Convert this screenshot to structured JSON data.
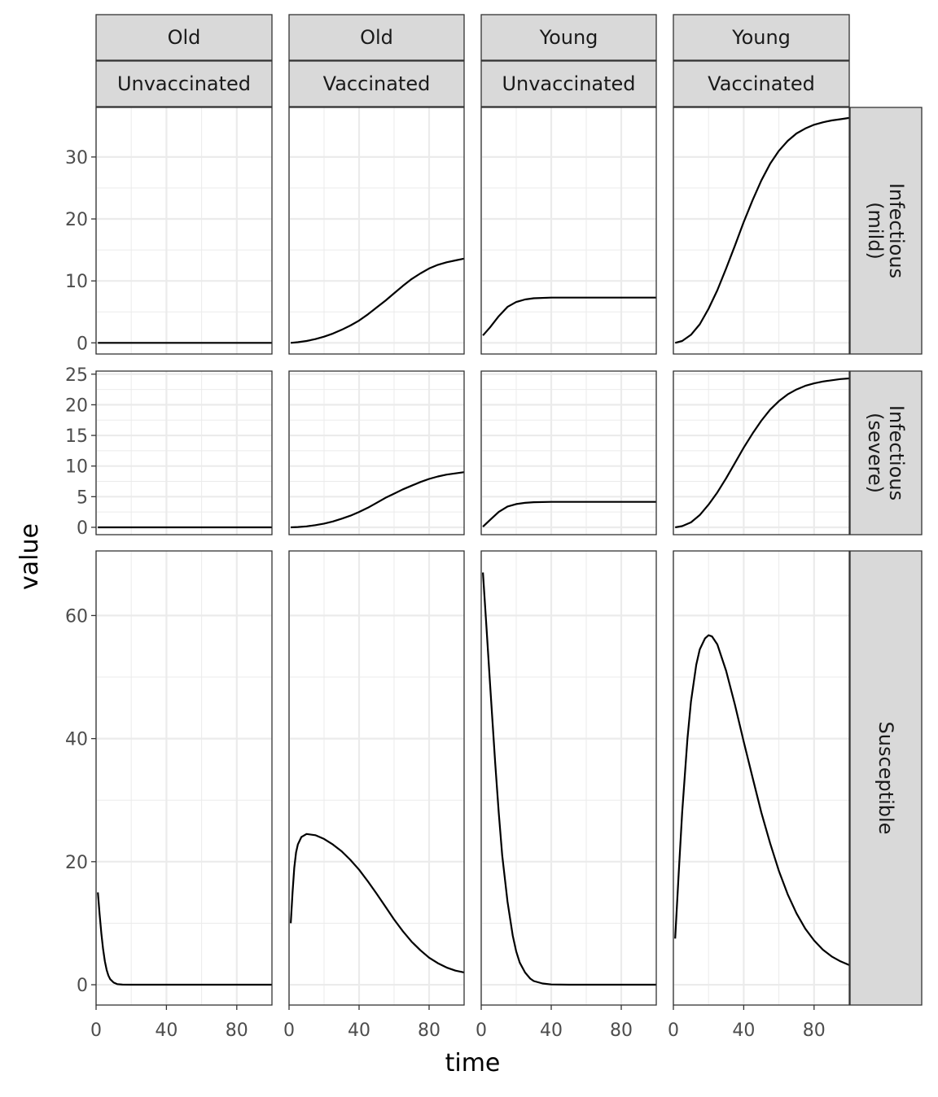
{
  "chart_data": {
    "type": "line",
    "xlabel": "time",
    "ylabel": "value",
    "xlim": [
      0,
      100
    ],
    "x_ticks": [
      0,
      40,
      80
    ],
    "grid": true,
    "line_color": "#000000",
    "strip_fill": "#d9d9d9",
    "grid_color": "#ebebeb",
    "panel_border_color": "#333333",
    "column_strips": [
      {
        "top": "Old",
        "bottom": "Unvaccinated"
      },
      {
        "top": "Old",
        "bottom": "Vaccinated"
      },
      {
        "top": "Young",
        "bottom": "Unvaccinated"
      },
      {
        "top": "Young",
        "bottom": "Vaccinated"
      }
    ],
    "rows": [
      {
        "strip": [
          "Infectious",
          "(mild)"
        ],
        "ylim": [
          -1.8,
          38
        ],
        "y_ticks": [
          0,
          10,
          20,
          30
        ],
        "y_tick_labels": [
          "0",
          "10",
          "20",
          "30"
        ],
        "series": [
          {
            "x": [
              1,
              10,
              20,
              30,
              40,
              50,
              60,
              70,
              80,
              90,
              100
            ],
            "y": [
              0,
              0,
              0,
              0,
              0,
              0,
              0,
              0,
              0,
              0,
              0
            ]
          },
          {
            "x": [
              1,
              5,
              10,
              15,
              20,
              25,
              30,
              35,
              40,
              45,
              50,
              55,
              60,
              65,
              70,
              75,
              80,
              85,
              90,
              95,
              100
            ],
            "y": [
              0,
              0.1,
              0.3,
              0.6,
              1.0,
              1.5,
              2.1,
              2.8,
              3.6,
              4.6,
              5.7,
              6.8,
              8.0,
              9.2,
              10.3,
              11.2,
              12.0,
              12.6,
              13.0,
              13.3,
              13.6
            ]
          },
          {
            "x": [
              1,
              5,
              10,
              15,
              20,
              25,
              30,
              40,
              50,
              60,
              70,
              80,
              90,
              100
            ],
            "y": [
              1.2,
              2.5,
              4.3,
              5.8,
              6.6,
              7.0,
              7.2,
              7.3,
              7.3,
              7.3,
              7.3,
              7.3,
              7.3,
              7.3
            ]
          },
          {
            "x": [
              1,
              5,
              10,
              15,
              20,
              25,
              30,
              35,
              40,
              45,
              50,
              55,
              60,
              65,
              70,
              75,
              80,
              85,
              90,
              95,
              100
            ],
            "y": [
              0,
              0.3,
              1.3,
              3.0,
              5.5,
              8.5,
              12.0,
              15.7,
              19.5,
              23.0,
              26.2,
              28.9,
              31.0,
              32.6,
              33.8,
              34.6,
              35.2,
              35.6,
              35.9,
              36.1,
              36.3
            ]
          }
        ]
      },
      {
        "strip": [
          "Infectious",
          "(severe)"
        ],
        "ylim": [
          -1.2,
          25.5
        ],
        "y_ticks": [
          0,
          5,
          10,
          15,
          20,
          25
        ],
        "y_tick_labels": [
          "0",
          "5",
          "10",
          "15",
          "20",
          "25"
        ],
        "series": [
          {
            "x": [
              1,
              10,
              20,
              30,
              40,
              50,
              60,
              70,
              80,
              90,
              100
            ],
            "y": [
              0,
              0,
              0,
              0,
              0,
              0,
              0,
              0,
              0,
              0,
              0
            ]
          },
          {
            "x": [
              1,
              5,
              10,
              15,
              20,
              25,
              30,
              35,
              40,
              45,
              50,
              55,
              60,
              65,
              70,
              75,
              80,
              85,
              90,
              95,
              100
            ],
            "y": [
              0,
              0.05,
              0.15,
              0.35,
              0.6,
              0.95,
              1.4,
              1.9,
              2.5,
              3.2,
              4.0,
              4.8,
              5.5,
              6.2,
              6.8,
              7.4,
              7.9,
              8.3,
              8.6,
              8.8,
              9.0
            ]
          },
          {
            "x": [
              1,
              5,
              10,
              15,
              20,
              25,
              30,
              40,
              50,
              60,
              70,
              80,
              90,
              100
            ],
            "y": [
              0.1,
              1.2,
              2.5,
              3.4,
              3.8,
              4.0,
              4.1,
              4.15,
              4.15,
              4.15,
              4.15,
              4.15,
              4.15,
              4.15
            ]
          },
          {
            "x": [
              1,
              5,
              10,
              15,
              20,
              25,
              30,
              35,
              40,
              45,
              50,
              55,
              60,
              65,
              70,
              75,
              80,
              85,
              90,
              95,
              100
            ],
            "y": [
              0,
              0.2,
              0.8,
              2.0,
              3.7,
              5.7,
              8.0,
              10.5,
              13.0,
              15.3,
              17.4,
              19.2,
              20.6,
              21.7,
              22.5,
              23.1,
              23.5,
              23.8,
              24.0,
              24.2,
              24.3
            ]
          }
        ]
      },
      {
        "strip": [
          "Susceptible"
        ],
        "ylim": [
          -3.3,
          70.5
        ],
        "y_ticks": [
          0,
          20,
          40,
          60
        ],
        "y_tick_labels": [
          "0",
          "20",
          "40",
          "60"
        ],
        "series": [
          {
            "x": [
              1,
              2,
              3,
              4,
              5,
              6,
              7,
              8,
              10,
              12,
              15,
              20,
              40,
              60,
              80,
              100
            ],
            "y": [
              15,
              11.5,
              8.3,
              5.8,
              3.8,
              2.4,
              1.5,
              0.9,
              0.35,
              0.1,
              0.02,
              0,
              0,
              0,
              0,
              0
            ]
          },
          {
            "x": [
              1,
              2,
              3,
              4,
              5,
              7,
              10,
              15,
              20,
              25,
              30,
              35,
              40,
              45,
              50,
              55,
              60,
              65,
              70,
              75,
              80,
              85,
              90,
              95,
              100
            ],
            "y": [
              10,
              15,
              19,
              21.5,
              22.8,
              24.0,
              24.5,
              24.3,
              23.7,
              22.8,
              21.7,
              20.3,
              18.7,
              16.8,
              14.8,
              12.7,
              10.6,
              8.7,
              7.0,
              5.6,
              4.4,
              3.5,
              2.8,
              2.3,
              2.0
            ]
          },
          {
            "x": [
              1,
              3,
              5,
              8,
              10,
              12,
              15,
              18,
              20,
              22,
              25,
              28,
              30,
              35,
              40,
              50,
              60,
              80,
              100
            ],
            "y": [
              67,
              58,
              49,
              36,
              28,
              21,
              13.5,
              8.0,
              5.4,
              3.6,
              2.0,
              1.0,
              0.6,
              0.2,
              0.05,
              0,
              0,
              0,
              0
            ]
          },
          {
            "x": [
              1,
              3,
              5,
              8,
              10,
              13,
              15,
              18,
              20,
              22,
              25,
              30,
              35,
              40,
              45,
              50,
              55,
              60,
              65,
              70,
              75,
              80,
              85,
              90,
              95,
              100
            ],
            "y": [
              7.5,
              18,
              28,
              40,
              46,
              52,
              54.5,
              56.3,
              56.8,
              56.6,
              55.3,
              51.0,
              45.5,
              39.5,
              33.7,
              28.0,
              23.0,
              18.5,
              14.7,
              11.6,
              9.1,
              7.2,
              5.7,
              4.6,
              3.8,
              3.2
            ]
          }
        ]
      }
    ]
  }
}
